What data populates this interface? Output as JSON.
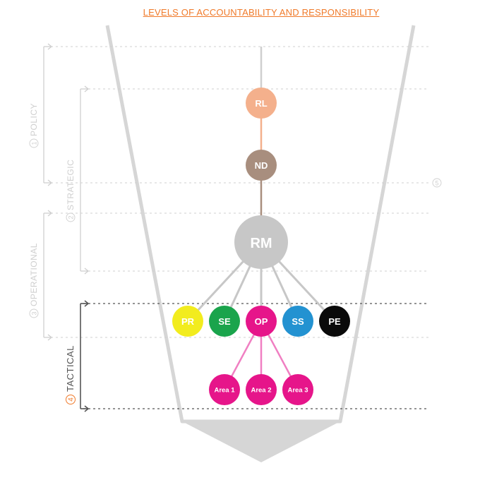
{
  "title": "LEVELS OF ACCOUNTABILITY AND RESPONSIBILITY",
  "levels": [
    {
      "num": "1",
      "label": "POLICY"
    },
    {
      "num": "2",
      "label": "STRATEGIC"
    },
    {
      "num": "3",
      "label": "OPERATIONAL"
    },
    {
      "num": "4",
      "label": "TACTICAL"
    },
    {
      "num": "5",
      "label": ""
    }
  ],
  "nodes": {
    "rl": {
      "label": "RL",
      "color": "#f4b08c"
    },
    "nd": {
      "label": "ND",
      "color": "#a88e7e"
    },
    "rm": {
      "label": "RM",
      "color": "#c7c7c7"
    },
    "pr": {
      "label": "PR",
      "color": "#f2ec1e"
    },
    "se": {
      "label": "SE",
      "color": "#1aa44c"
    },
    "op": {
      "label": "OP",
      "color": "#e6158a"
    },
    "ss": {
      "label": "SS",
      "color": "#2392d1"
    },
    "pe": {
      "label": "PE",
      "color": "#0a0a0a"
    },
    "area1": {
      "label": "Area 1",
      "color": "#e6158a"
    },
    "area2": {
      "label": "Area 2",
      "color": "#e6158a"
    },
    "area3": {
      "label": "Area 3",
      "color": "#e6158a"
    }
  },
  "colors": {
    "accent": "#f07a2a",
    "funnel": "#d6d6d6",
    "guide": "#c8c8c8",
    "tactical": "#555555",
    "connector_gray": "#c7c7c7",
    "connector_pink": "#f07fc2"
  }
}
